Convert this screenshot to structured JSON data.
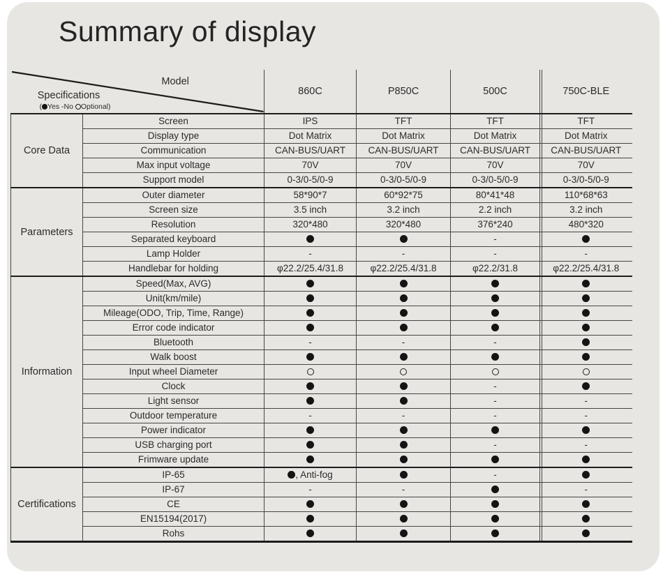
{
  "title": "Summary of display",
  "colors": {
    "card_bg": "#e8e6e3",
    "line": "#454545",
    "thick_line": "#1c1c1c",
    "text": "#2b2b2b"
  },
  "table": {
    "header": {
      "model_label": "Model",
      "spec_label": "Specifications",
      "legend": "(●Yes -No ○Optional)",
      "columns": [
        "860C",
        "P850C",
        "500C",
        "750C-BLE"
      ]
    },
    "sections": [
      {
        "name": "Core Data",
        "rows": [
          {
            "label": "Screen",
            "values": [
              "IPS",
              "TFT",
              "TFT",
              "TFT"
            ]
          },
          {
            "label": "Display type",
            "values": [
              "Dot Matrix",
              "Dot Matrix",
              "Dot Matrix",
              "Dot Matrix"
            ]
          },
          {
            "label": "Communication",
            "values": [
              "CAN-BUS/UART",
              "CAN-BUS/UART",
              "CAN-BUS/UART",
              "CAN-BUS/UART"
            ]
          },
          {
            "label": "Max input voltage",
            "values": [
              "70V",
              "70V",
              "70V",
              "70V"
            ]
          },
          {
            "label": "Support model",
            "values": [
              "0-3/0-5/0-9",
              "0-3/0-5/0-9",
              "0-3/0-5/0-9",
              "0-3/0-5/0-9"
            ]
          }
        ]
      },
      {
        "name": "Parameters",
        "rows": [
          {
            "label": "Outer diameter",
            "values": [
              "58*90*7",
              "60*92*75",
              "80*41*48",
              "110*68*63"
            ]
          },
          {
            "label": "Screen size",
            "values": [
              "3.5 inch",
              "3.2 inch",
              "2.2 inch",
              "3.2 inch"
            ]
          },
          {
            "label": "Resolution",
            "values": [
              "320*480",
              "320*480",
              "376*240",
              "480*320"
            ]
          },
          {
            "label": "Separated keyboard",
            "values": [
              "●",
              "●",
              "-",
              "●"
            ]
          },
          {
            "label": "Lamp Holder",
            "values": [
              "-",
              "-",
              "-",
              "-"
            ]
          },
          {
            "label": "Handlebar for holding",
            "values": [
              "φ22.2/25.4/31.8",
              "φ22.2/25.4/31.8",
              "φ22.2/31.8",
              "φ22.2/25.4/31.8"
            ]
          }
        ]
      },
      {
        "name": "Information",
        "rows": [
          {
            "label": "Speed(Max, AVG)",
            "values": [
              "●",
              "●",
              "●",
              "●"
            ]
          },
          {
            "label": "Unit(km/mile)",
            "values": [
              "●",
              "●",
              "●",
              "●"
            ]
          },
          {
            "label": "Mileage(ODO, Trip, Time, Range)",
            "values": [
              "●",
              "●",
              "●",
              "●"
            ]
          },
          {
            "label": "Error code indicator",
            "values": [
              "●",
              "●",
              "●",
              "●"
            ]
          },
          {
            "label": "Bluetooth",
            "values": [
              "-",
              "-",
              "-",
              "●"
            ]
          },
          {
            "label": "Walk boost",
            "values": [
              "●",
              "●",
              "●",
              "●"
            ]
          },
          {
            "label": "Input wheel Diameter",
            "values": [
              "○",
              "○",
              "○",
              "○"
            ]
          },
          {
            "label": "Clock",
            "values": [
              "●",
              "●",
              "-",
              "●"
            ]
          },
          {
            "label": "Light sensor",
            "values": [
              "●",
              "●",
              "-",
              "-"
            ]
          },
          {
            "label": "Outdoor temperature",
            "values": [
              "-",
              "-",
              "-",
              "-"
            ]
          },
          {
            "label": "Power indicator",
            "values": [
              "●",
              "●",
              "●",
              "●"
            ]
          },
          {
            "label": "USB charging port",
            "values": [
              "●",
              "●",
              "-",
              "-"
            ]
          },
          {
            "label": "Frimware update",
            "values": [
              "●",
              "●",
              "●",
              "●"
            ]
          }
        ]
      },
      {
        "name": "Certifications",
        "rows": [
          {
            "label": "IP-65",
            "values": [
              "●, Anti-fog",
              "●",
              "-",
              "●"
            ]
          },
          {
            "label": "IP-67",
            "values": [
              "-",
              "-",
              "●",
              "-"
            ]
          },
          {
            "label": "CE",
            "values": [
              "●",
              "●",
              "●",
              "●"
            ]
          },
          {
            "label": "EN15194(2017)",
            "values": [
              "●",
              "●",
              "●",
              "●"
            ]
          },
          {
            "label": "Rohs",
            "values": [
              "●",
              "●",
              "●",
              "●"
            ]
          }
        ]
      }
    ]
  }
}
